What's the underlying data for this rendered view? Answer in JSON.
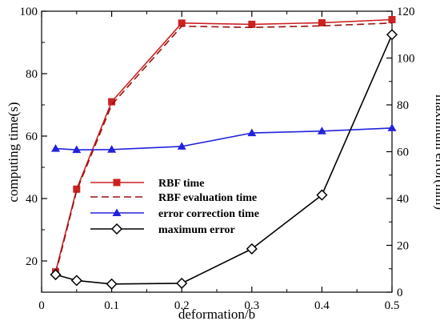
{
  "chart_data": {
    "type": "line",
    "xlabel": "deformation/b",
    "ylabel": "computing time(s)",
    "y2label": "maximum error(mm)",
    "xlim": [
      0,
      0.5
    ],
    "ylim": [
      10,
      100
    ],
    "y2lim": [
      0,
      120
    ],
    "xticks": [
      "0",
      "0.1",
      "0.2",
      "0.3",
      "0.4",
      "0.5"
    ],
    "yticks": [
      "20",
      "40",
      "60",
      "80",
      "100"
    ],
    "y2ticks": [
      "0",
      "20",
      "40",
      "60",
      "80",
      "100",
      "120"
    ],
    "legend_position": "center-left",
    "grid": false,
    "series": [
      {
        "name": "RBF time",
        "axis": "left",
        "color": "#cc2222",
        "line": "solid",
        "marker": "square-filled",
        "x": [
          0.02,
          0.05,
          0.1,
          0.2,
          0.3,
          0.4,
          0.5
        ],
        "y": [
          16.5,
          43,
          71,
          96.2,
          95.8,
          96.3,
          97.3
        ]
      },
      {
        "name": "RBF evaluation time",
        "axis": "left",
        "color": "#9a1010",
        "line": "dashed",
        "marker": "none",
        "x": [
          0.02,
          0.05,
          0.1,
          0.2,
          0.3,
          0.4,
          0.5
        ],
        "y": [
          15.8,
          42.5,
          70,
          95.2,
          94.8,
          95.3,
          96.2
        ]
      },
      {
        "name": "error correction time",
        "axis": "left",
        "color": "#2222dd",
        "line": "solid",
        "marker": "triangle-filled",
        "x": [
          0.02,
          0.05,
          0.1,
          0.2,
          0.3,
          0.4,
          0.5
        ],
        "y": [
          56,
          55.6,
          55.7,
          56.7,
          61,
          61.6,
          62.6
        ]
      },
      {
        "name": "maximum error",
        "axis": "right",
        "color": "#000000",
        "line": "solid",
        "marker": "diamond-open",
        "x": [
          0.02,
          0.05,
          0.1,
          0.2,
          0.3,
          0.4,
          0.5
        ],
        "y": [
          7.5,
          5,
          3.5,
          3.8,
          18.5,
          41.5,
          110
        ]
      }
    ]
  }
}
